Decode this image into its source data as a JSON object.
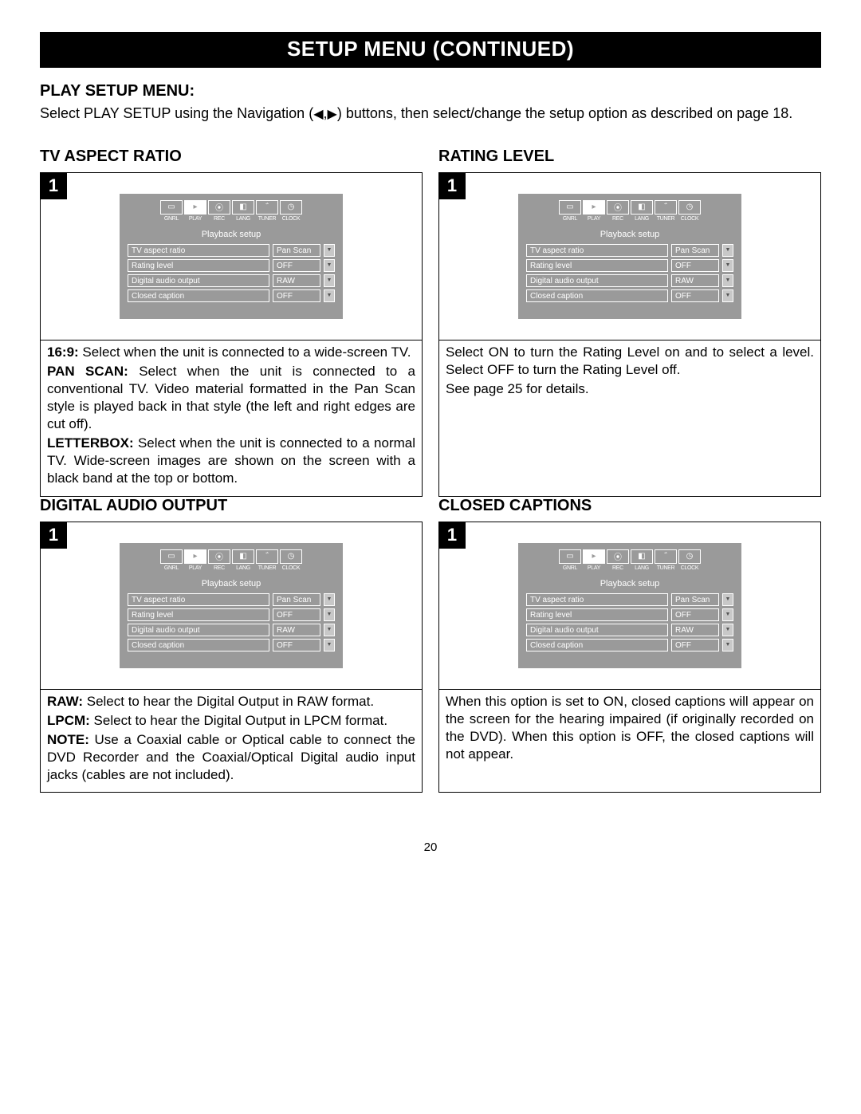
{
  "page_number": "20",
  "title_bar": "SETUP MENU (CONTINUED)",
  "intro_heading": "PLAY SETUP MENU:",
  "intro_text_before": "Select PLAY SETUP using the Navigation (",
  "intro_text_after": ") buttons, then select/change the setup option as described on page 18.",
  "arrow_sep": ",",
  "osd": {
    "tab_labels": [
      "GNRL",
      "PLAY",
      "REC",
      "LANG",
      "TUNER",
      "CLOCK"
    ],
    "panel_title": "Playback setup",
    "rows": [
      {
        "label": "TV aspect ratio",
        "value": "Pan Scan"
      },
      {
        "label": "Rating level",
        "value": "OFF"
      },
      {
        "label": "Digital audio output",
        "value": "RAW"
      },
      {
        "label": "Closed caption",
        "value": "OFF"
      }
    ]
  },
  "sections": [
    {
      "heading": "TV ASPECT RATIO",
      "step": "1",
      "body": [
        {
          "bold": "16:9:",
          "text": " Select when the unit is connected to a wide-screen TV."
        },
        {
          "bold": "PAN SCAN:",
          "text": " Select when the unit is connected to a conventional TV. Video material formatted in the Pan Scan style is played back in that style (the left and right edges are cut off)."
        },
        {
          "bold": "LETTERBOX:",
          "text": " Select when the unit is connected to a normal TV. Wide-screen images are shown on the screen with a black band at the top or bottom."
        }
      ]
    },
    {
      "heading": "RATING LEVEL",
      "step": "1",
      "body": [
        {
          "bold": "",
          "text": "Select ON to turn the Rating Level on and to select a level. Select OFF to turn the Rating Level off."
        },
        {
          "bold": "",
          "text": "See page 25 for details."
        }
      ]
    },
    {
      "heading": "DIGITAL AUDIO OUTPUT",
      "step": "1",
      "body": [
        {
          "bold": "RAW:",
          "text": " Select to hear the Digital Output in RAW format."
        },
        {
          "bold": "LPCM:",
          "text": " Select to hear the Digital Output in LPCM format."
        },
        {
          "bold": "NOTE:",
          "text": " Use a Coaxial cable or Optical cable to connect the DVD Recorder and the Coaxial/Optical Digital audio input jacks (cables are not included)."
        }
      ]
    },
    {
      "heading": "CLOSED CAPTIONS",
      "step": "1",
      "body": [
        {
          "bold": "",
          "text": "When this option is set to ON, closed captions will appear on the screen for the hearing impaired (if originally recorded on the DVD). When this option is OFF, the closed captions will not appear."
        }
      ]
    }
  ]
}
